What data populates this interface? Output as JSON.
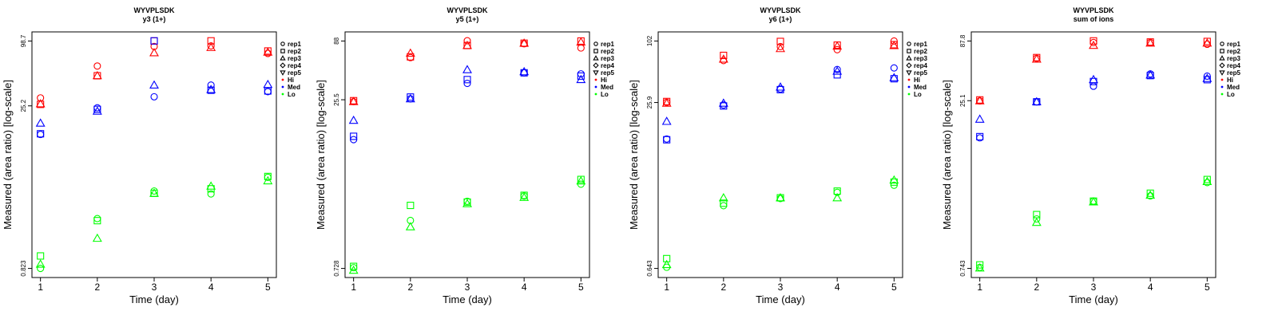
{
  "figure": {
    "colors": {
      "Hi": "#ff0000",
      "Med": "#0000ff",
      "Lo": "#00ff00"
    },
    "legend": {
      "replicates": [
        {
          "label": "rep1",
          "shape": "circle"
        },
        {
          "label": "rep2",
          "shape": "square"
        },
        {
          "label": "rep3",
          "shape": "triangle-up"
        },
        {
          "label": "rep4",
          "shape": "diamond"
        },
        {
          "label": "rep5",
          "shape": "triangle-down"
        }
      ],
      "levels": [
        "Hi",
        "Med",
        "Lo"
      ]
    }
  },
  "chart_data": [
    {
      "type": "scatter",
      "title": "WYVPLSDK",
      "subtitle": "y3 (1+)",
      "xlabel": "Time (day)",
      "ylabel": "Measured (area ratio) [log-scale]",
      "x_ticks": [
        "1",
        "2",
        "3",
        "4",
        "5"
      ],
      "y_ticks": [
        "0.823",
        "25.2",
        "98.7"
      ],
      "y_tick_values": [
        0.823,
        25.2,
        98.7
      ],
      "y_scale": "log",
      "ylim": [
        0.823,
        98.7
      ],
      "legend_position": "right",
      "series": [
        {
          "level": "Hi",
          "rep": "rep1",
          "values": [
            [
              1,
              29.8
            ],
            [
              2,
              58.3
            ],
            [
              3,
              88.0
            ],
            [
              4,
              89.0
            ],
            [
              5,
              76.0
            ]
          ]
        },
        {
          "level": "Hi",
          "rep": "rep2",
          "values": [
            [
              1,
              26.0
            ],
            [
              2,
              47.5
            ],
            [
              3,
              98.7
            ],
            [
              4,
              99.0
            ],
            [
              5,
              80.0
            ]
          ]
        },
        {
          "level": "Hi",
          "rep": "rep3",
          "values": [
            [
              1,
              26.3
            ],
            [
              2,
              47.5
            ],
            [
              3,
              77.0
            ],
            [
              4,
              86.0
            ],
            [
              5,
              78.0
            ]
          ]
        },
        {
          "level": "Med",
          "rep": "rep1",
          "values": [
            [
              1,
              13.8
            ],
            [
              2,
              24.2
            ],
            [
              3,
              30.5
            ],
            [
              4,
              39.0
            ],
            [
              5,
              34.0
            ]
          ]
        },
        {
          "level": "Med",
          "rep": "rep2",
          "values": [
            [
              1,
              14.0
            ],
            [
              2,
              23.4
            ],
            [
              3,
              99.0
            ],
            [
              4,
              35.0
            ],
            [
              5,
              34.5
            ]
          ]
        },
        {
          "level": "Med",
          "rep": "rep3",
          "values": [
            [
              1,
              17.5
            ],
            [
              2,
              22.5
            ],
            [
              3,
              39.0
            ],
            [
              4,
              35.5
            ],
            [
              5,
              39.5
            ]
          ]
        },
        {
          "level": "Lo",
          "rep": "rep1",
          "values": [
            [
              1,
              0.823
            ],
            [
              2,
              2.35
            ],
            [
              3,
              4.2
            ],
            [
              4,
              3.95
            ],
            [
              5,
              5.6
            ]
          ]
        },
        {
          "level": "Lo",
          "rep": "rep2",
          "values": [
            [
              1,
              1.07
            ],
            [
              2,
              2.25
            ],
            [
              3,
              4.0
            ],
            [
              4,
              4.4
            ],
            [
              5,
              5.7
            ]
          ]
        },
        {
          "level": "Lo",
          "rep": "rep3",
          "values": [
            [
              1,
              0.9
            ],
            [
              2,
              1.55
            ],
            [
              3,
              4.0
            ],
            [
              4,
              4.65
            ],
            [
              5,
              5.2
            ]
          ]
        }
      ]
    },
    {
      "type": "scatter",
      "title": "WYVPLSDK",
      "subtitle": "y5 (1+)",
      "xlabel": "Time (day)",
      "ylabel": "Measured (area ratio) [log-scale]",
      "x_ticks": [
        "1",
        "2",
        "3",
        "4",
        "5"
      ],
      "y_ticks": [
        "0.728",
        "25.5",
        "88"
      ],
      "y_tick_values": [
        0.728,
        25.5,
        88
      ],
      "y_scale": "log",
      "ylim": [
        0.728,
        88
      ],
      "legend_position": "right",
      "series": [
        {
          "level": "Hi",
          "rep": "rep1",
          "values": [
            [
              1,
              24.5
            ],
            [
              2,
              62.0
            ],
            [
              3,
              88.5
            ],
            [
              4,
              83.0
            ],
            [
              5,
              76.0
            ]
          ]
        },
        {
          "level": "Hi",
          "rep": "rep2",
          "values": [
            [
              1,
              25.0
            ],
            [
              2,
              63.0
            ],
            [
              3,
              80.0
            ],
            [
              4,
              84.0
            ],
            [
              5,
              88.0
            ]
          ]
        },
        {
          "level": "Hi",
          "rep": "rep3",
          "values": [
            [
              1,
              24.5
            ],
            [
              2,
              68.0
            ],
            [
              3,
              80.0
            ],
            [
              4,
              84.0
            ],
            [
              5,
              86.0
            ]
          ]
        },
        {
          "level": "Med",
          "rep": "rep1",
          "values": [
            [
              1,
              11.0
            ],
            [
              2,
              26.0
            ],
            [
              3,
              36.0
            ],
            [
              4,
              45.0
            ],
            [
              5,
              44.0
            ]
          ]
        },
        {
          "level": "Med",
          "rep": "rep2",
          "values": [
            [
              1,
              11.8
            ],
            [
              2,
              27.0
            ],
            [
              3,
              39.0
            ],
            [
              4,
              45.0
            ],
            [
              5,
              42.0
            ]
          ]
        },
        {
          "level": "Med",
          "rep": "rep3",
          "values": [
            [
              1,
              16.5
            ],
            [
              2,
              26.0
            ],
            [
              3,
              48.0
            ],
            [
              4,
              46.0
            ],
            [
              5,
              39.0
            ]
          ]
        },
        {
          "level": "Lo",
          "rep": "rep1",
          "values": [
            [
              1,
              0.74
            ],
            [
              2,
              2.0
            ],
            [
              3,
              3.0
            ],
            [
              4,
              3.35
            ],
            [
              5,
              4.3
            ]
          ]
        },
        {
          "level": "Lo",
          "rep": "rep2",
          "values": [
            [
              1,
              0.76
            ],
            [
              2,
              2.75
            ],
            [
              3,
              2.95
            ],
            [
              4,
              3.4
            ],
            [
              5,
              4.75
            ]
          ]
        },
        {
          "level": "Lo",
          "rep": "rep3",
          "values": [
            [
              1,
              0.7
            ],
            [
              2,
              1.75
            ],
            [
              3,
              2.85
            ],
            [
              4,
              3.25
            ],
            [
              5,
              4.6
            ]
          ]
        }
      ]
    },
    {
      "type": "scatter",
      "title": "WYVPLSDK",
      "subtitle": "y6 (1+)",
      "xlabel": "Time (day)",
      "ylabel": "Measured (area ratio) [log-scale]",
      "x_ticks": [
        "1",
        "2",
        "3",
        "4",
        "5"
      ],
      "y_ticks": [
        "0.643",
        "25.9",
        "102"
      ],
      "y_tick_values": [
        0.643,
        25.9,
        102
      ],
      "y_scale": "log",
      "ylim": [
        0.643,
        102
      ],
      "legend_position": "right",
      "series": [
        {
          "level": "Hi",
          "rep": "rep1",
          "values": [
            [
              1,
              26.0
            ],
            [
              2,
              66.0
            ],
            [
              3,
              90.0
            ],
            [
              4,
              84.0
            ],
            [
              5,
              102.0
            ]
          ]
        },
        {
          "level": "Hi",
          "rep": "rep2",
          "values": [
            [
              1,
              26.5
            ],
            [
              2,
              74.0
            ],
            [
              3,
              101.0
            ],
            [
              4,
              93.0
            ],
            [
              5,
              94.0
            ]
          ]
        },
        {
          "level": "Hi",
          "rep": "rep3",
          "values": [
            [
              1,
              25.5
            ],
            [
              2,
              68.0
            ],
            [
              3,
              86.0
            ],
            [
              4,
              91.0
            ],
            [
              5,
              92.0
            ]
          ]
        },
        {
          "level": "Med",
          "rep": "rep1",
          "values": [
            [
              1,
              11.5
            ],
            [
              2,
              24.5
            ],
            [
              3,
              35.0
            ],
            [
              4,
              54.0
            ],
            [
              5,
              56.0
            ]
          ]
        },
        {
          "level": "Med",
          "rep": "rep2",
          "values": [
            [
              1,
              11.3
            ],
            [
              2,
              24.0
            ],
            [
              3,
              34.5
            ],
            [
              4,
              48.0
            ],
            [
              5,
              44.0
            ]
          ]
        },
        {
          "level": "Med",
          "rep": "rep3",
          "values": [
            [
              1,
              17.0
            ],
            [
              2,
              25.5
            ],
            [
              3,
              36.5
            ],
            [
              4,
              52.0
            ],
            [
              5,
              45.0
            ]
          ]
        },
        {
          "level": "Lo",
          "rep": "rep1",
          "values": [
            [
              1,
              0.66
            ],
            [
              2,
              2.6
            ],
            [
              3,
              3.05
            ],
            [
              4,
              3.5
            ],
            [
              5,
              4.1
            ]
          ]
        },
        {
          "level": "Lo",
          "rep": "rep2",
          "values": [
            [
              1,
              0.8
            ],
            [
              2,
              2.75
            ],
            [
              3,
              3.1
            ],
            [
              4,
              3.6
            ],
            [
              5,
              4.4
            ]
          ]
        },
        {
          "level": "Lo",
          "rep": "rep3",
          "values": [
            [
              1,
              0.7
            ],
            [
              2,
              3.1
            ],
            [
              3,
              3.1
            ],
            [
              4,
              3.1
            ],
            [
              5,
              4.6
            ]
          ]
        }
      ]
    },
    {
      "type": "scatter",
      "title": "WYVPLSDK",
      "subtitle": "sum of ions",
      "xlabel": "Time (day)",
      "ylabel": "Measured (area ratio) [log-scale]",
      "x_ticks": [
        "1",
        "2",
        "3",
        "4",
        "5"
      ],
      "y_ticks": [
        "0.743",
        "25.1",
        "87.8"
      ],
      "y_tick_values": [
        0.743,
        25.1,
        87.8
      ],
      "y_scale": "log",
      "ylim": [
        0.743,
        87.8
      ],
      "legend_position": "right",
      "series": [
        {
          "level": "Hi",
          "rep": "rep1",
          "values": [
            [
              1,
              25.0
            ],
            [
              2,
              61.0
            ],
            [
              3,
              85.0
            ],
            [
              4,
              85.0
            ],
            [
              5,
              82.0
            ]
          ]
        },
        {
          "level": "Hi",
          "rep": "rep2",
          "values": [
            [
              1,
              25.5
            ],
            [
              2,
              62.0
            ],
            [
              3,
              88.0
            ],
            [
              4,
              86.0
            ],
            [
              5,
              87.0
            ]
          ]
        },
        {
          "level": "Hi",
          "rep": "rep3",
          "values": [
            [
              1,
              25.0
            ],
            [
              2,
              60.0
            ],
            [
              3,
              80.0
            ],
            [
              4,
              84.0
            ],
            [
              5,
              84.0
            ]
          ]
        },
        {
          "level": "Med",
          "rep": "rep1",
          "values": [
            [
              1,
              11.5
            ],
            [
              2,
              24.5
            ],
            [
              3,
              34.0
            ],
            [
              4,
              44.0
            ],
            [
              5,
              42.0
            ]
          ]
        },
        {
          "level": "Med",
          "rep": "rep2",
          "values": [
            [
              1,
              11.8
            ],
            [
              2,
              24.5
            ],
            [
              3,
              37.5
            ],
            [
              4,
              42.5
            ],
            [
              5,
              39.0
            ]
          ]
        },
        {
          "level": "Med",
          "rep": "rep3",
          "values": [
            [
              1,
              17.0
            ],
            [
              2,
              24.5
            ],
            [
              3,
              39.0
            ],
            [
              4,
              43.0
            ],
            [
              5,
              40.0
            ]
          ]
        },
        {
          "level": "Lo",
          "rep": "rep1",
          "values": [
            [
              1,
              0.76
            ],
            [
              2,
              2.1
            ],
            [
              3,
              3.05
            ],
            [
              4,
              3.4
            ],
            [
              5,
              4.5
            ]
          ]
        },
        {
          "level": "Lo",
          "rep": "rep2",
          "values": [
            [
              1,
              0.8
            ],
            [
              2,
              2.3
            ],
            [
              3,
              3.05
            ],
            [
              4,
              3.6
            ],
            [
              5,
              4.8
            ]
          ]
        },
        {
          "level": "Lo",
          "rep": "rep3",
          "values": [
            [
              1,
              0.75
            ],
            [
              2,
              1.95
            ],
            [
              3,
              3.0
            ],
            [
              4,
              3.45
            ],
            [
              5,
              4.6
            ]
          ]
        }
      ]
    }
  ]
}
